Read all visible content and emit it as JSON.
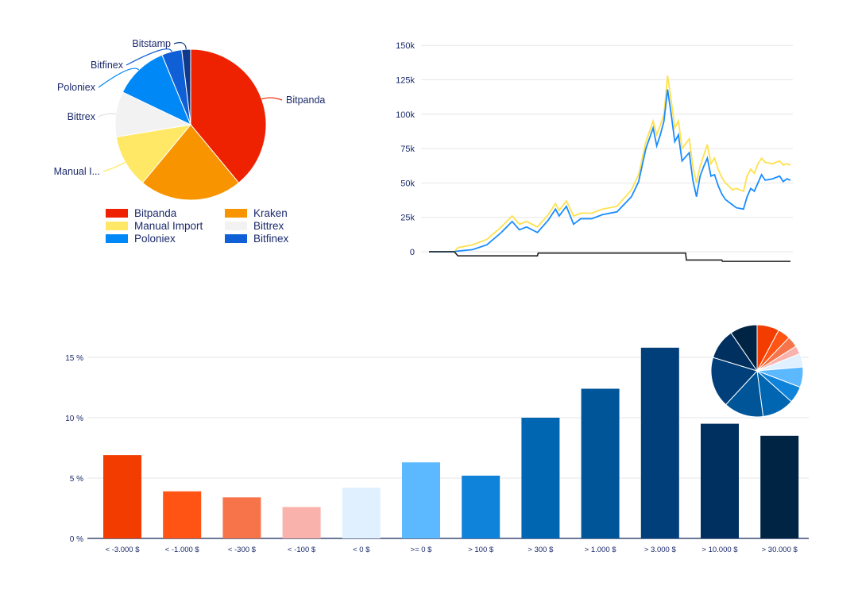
{
  "chart_data": [
    {
      "type": "pie",
      "title": "",
      "labels": [
        "Bitpanda",
        "Kraken",
        "Manual Import",
        "Bittrex",
        "Poloniex",
        "Bitfinex",
        "Bitstamp"
      ],
      "callout_labels": [
        "Bitpanda",
        "",
        "Manual I...",
        "Bittrex",
        "Poloniex",
        "Bitfinex",
        "Bitstamp"
      ],
      "values": [
        39,
        22,
        11.4,
        9.7,
        11.7,
        4.3,
        1.9
      ],
      "colors": [
        "#ee2200",
        "#f79400",
        "#ffe866",
        "#f2f2f2",
        "#0088f7",
        "#0f5fd6",
        "#0f3a8c"
      ],
      "legend": [
        "Bitpanda",
        "Kraken",
        "Manual Import",
        "Bittrex",
        "Poloniex",
        "Bitfinex"
      ],
      "legend_placement": "bottom"
    },
    {
      "type": "line",
      "yticks": [
        "0",
        "25k",
        "50k",
        "75k",
        "100k",
        "125k",
        "150k"
      ],
      "ylim": [
        -10000,
        150000
      ],
      "grid": true,
      "series": [
        {
          "name": "yellow",
          "color": "#ffe14d",
          "x": [
            0,
            7,
            8,
            12,
            16,
            20,
            23,
            25,
            27,
            30,
            33,
            35,
            36,
            38,
            40,
            42,
            45,
            48,
            52,
            56,
            58,
            60,
            62,
            63,
            64,
            65,
            66,
            67,
            68,
            69,
            70,
            72,
            73,
            74,
            75,
            76,
            77,
            78,
            79,
            80,
            81,
            82,
            84,
            85,
            87,
            88,
            89,
            90,
            91,
            92,
            93,
            95,
            97,
            98,
            99,
            100
          ],
          "y": [
            0,
            0,
            3000,
            5000,
            9000,
            18000,
            26000,
            20000,
            22000,
            18000,
            27000,
            35000,
            30000,
            37000,
            26000,
            28000,
            28000,
            31000,
            33000,
            45000,
            56000,
            80000,
            95000,
            85000,
            92000,
            100000,
            128000,
            110000,
            90000,
            95000,
            75000,
            82000,
            62000,
            50000,
            62000,
            70000,
            78000,
            64000,
            68000,
            60000,
            54000,
            50000,
            45000,
            46000,
            44000,
            55000,
            60000,
            57000,
            64000,
            68000,
            65000,
            64000,
            66000,
            63000,
            64000,
            63000
          ]
        },
        {
          "name": "blue",
          "color": "#1a8cff",
          "x": [
            0,
            7,
            8,
            12,
            16,
            20,
            23,
            25,
            27,
            30,
            33,
            35,
            36,
            38,
            40,
            42,
            45,
            48,
            52,
            56,
            58,
            60,
            62,
            63,
            64,
            65,
            66,
            67,
            68,
            69,
            70,
            72,
            73,
            74,
            75,
            76,
            77,
            78,
            79,
            80,
            81,
            82,
            84,
            85,
            87,
            88,
            89,
            90,
            91,
            92,
            93,
            95,
            97,
            98,
            99,
            100
          ],
          "y": [
            0,
            0,
            500,
            1500,
            5000,
            14000,
            22000,
            16000,
            18000,
            14000,
            23000,
            31000,
            26000,
            33000,
            20000,
            24000,
            24000,
            27000,
            29000,
            40000,
            51000,
            75000,
            90000,
            77000,
            85000,
            95000,
            118000,
            100000,
            80000,
            85000,
            66000,
            72000,
            52000,
            40000,
            55000,
            62000,
            68000,
            55000,
            56000,
            48000,
            42000,
            38000,
            34000,
            32000,
            31000,
            40000,
            46000,
            44000,
            50000,
            56000,
            52000,
            53000,
            55000,
            51000,
            53000,
            52000
          ]
        },
        {
          "name": "black",
          "color": "#222222",
          "x": [
            0,
            7,
            8,
            30,
            30.2,
            71,
            71.2,
            81,
            81.2,
            100
          ],
          "y": [
            0,
            0,
            -3000,
            -3000,
            -1000,
            -1000,
            -6000,
            -6000,
            -7000,
            -7000
          ]
        }
      ]
    },
    {
      "type": "bar",
      "categories": [
        "< -3.000 $",
        "< -1.000 $",
        "< -300 $",
        "< -100 $",
        "< 0 $",
        ">= 0 $",
        "> 100 $",
        "> 300 $",
        "> 1.000 $",
        "> 3.000 $",
        "> 10.000 $",
        "> 30.000 $"
      ],
      "values": [
        6.9,
        3.9,
        3.4,
        2.6,
        4.2,
        6.3,
        5.2,
        10.0,
        12.4,
        15.8,
        9.5,
        8.5
      ],
      "colors": [
        "#f23c00",
        "#ff5414",
        "#f7744a",
        "#fab2ad",
        "#e0f0ff",
        "#5cb8ff",
        "#0f82d9",
        "#0066b2",
        "#005599",
        "#003f7a",
        "#003060",
        "#002444"
      ],
      "yticks": [
        "0 %",
        "5 %",
        "10 %",
        "15 %"
      ],
      "ylim": [
        0,
        15.8
      ],
      "inset_pie": "same values as bars",
      "grid": true
    }
  ]
}
